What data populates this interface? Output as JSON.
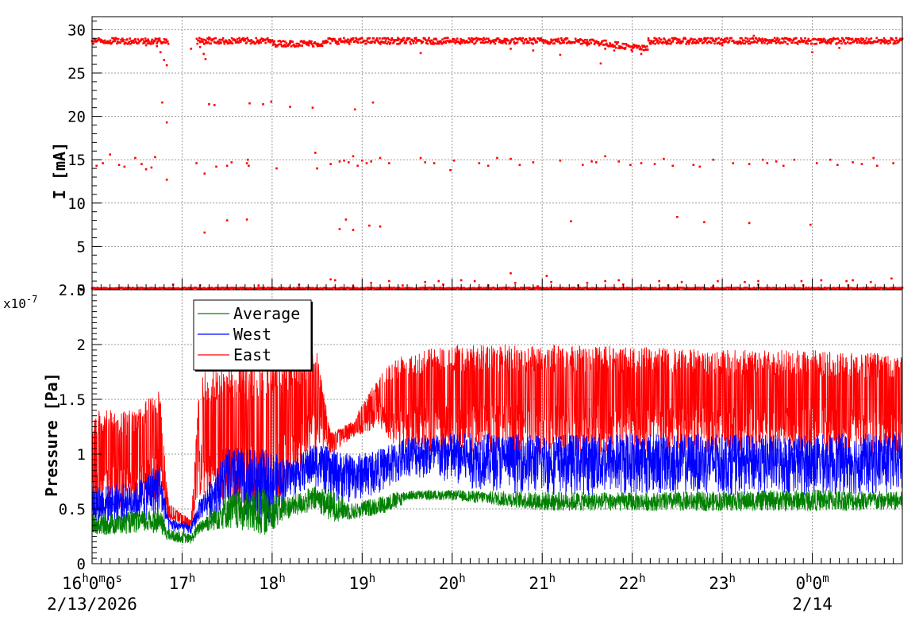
{
  "chart_data": [
    {
      "type": "scatter",
      "panel": "top",
      "ylabel": "I [mA]",
      "ylim": [
        0,
        31.5
      ],
      "y_ticks": [
        0,
        5,
        10,
        15,
        20,
        25,
        30
      ],
      "y_tick_labels": [
        "0",
        "5",
        "10",
        "15",
        "20",
        "25",
        "30"
      ],
      "grid": true,
      "series": [
        {
          "color": "#ff0000",
          "baseline_level": 28.7,
          "secondary_level": 14.6,
          "zero_level": 0.1,
          "gap_hours": [
            [
              16.85,
              17.16
            ]
          ],
          "dip_points": [
            [
              16.72,
              28.1
            ],
            [
              16.76,
              27.4
            ],
            [
              16.8,
              26.5
            ],
            [
              16.83,
              25.9
            ],
            [
              17.2,
              28.0
            ],
            [
              17.24,
              27.2
            ],
            [
              17.26,
              26.6
            ]
          ],
          "outliers": [
            [
              16.05,
              14.3
            ],
            [
              16.12,
              14.6
            ],
            [
              16.2,
              15.6
            ],
            [
              16.3,
              14.4
            ],
            [
              16.36,
              14.2
            ],
            [
              16.48,
              15.2
            ],
            [
              16.55,
              14.5
            ],
            [
              16.6,
              13.9
            ],
            [
              16.66,
              14.1
            ],
            [
              16.7,
              15.3
            ],
            [
              16.78,
              21.6
            ],
            [
              16.83,
              19.3
            ],
            [
              16.83,
              12.7
            ],
            [
              17.16,
              14.6
            ],
            [
              17.25,
              13.4
            ],
            [
              17.3,
              21.4
            ],
            [
              17.36,
              21.3
            ],
            [
              17.38,
              14.2
            ],
            [
              17.5,
              14.3
            ],
            [
              17.55,
              14.7
            ],
            [
              17.72,
              14.6
            ],
            [
              17.73,
              15.0
            ],
            [
              17.74,
              14.3
            ],
            [
              17.75,
              21.5
            ],
            [
              17.9,
              21.4
            ],
            [
              17.99,
              21.7
            ],
            [
              18.05,
              14.0
            ],
            [
              18.2,
              21.1
            ],
            [
              18.45,
              21.0
            ],
            [
              18.5,
              14.0
            ],
            [
              18.48,
              15.8
            ],
            [
              18.65,
              14.5
            ],
            [
              18.75,
              14.8
            ],
            [
              18.8,
              14.9
            ],
            [
              18.85,
              14.7
            ],
            [
              18.92,
              20.8
            ],
            [
              18.9,
              15.4
            ],
            [
              18.95,
              14.3
            ],
            [
              19.0,
              14.9
            ],
            [
              19.05,
              14.6
            ],
            [
              19.12,
              21.6
            ],
            [
              19.1,
              14.8
            ],
            [
              19.2,
              15.2
            ],
            [
              19.3,
              14.6
            ],
            [
              19.65,
              15.2
            ],
            [
              19.7,
              14.7
            ],
            [
              19.8,
              14.6
            ],
            [
              19.98,
              13.8
            ],
            [
              20.02,
              14.9
            ],
            [
              20.3,
              14.6
            ],
            [
              20.4,
              14.3
            ],
            [
              20.5,
              15.2
            ],
            [
              20.65,
              15.1
            ],
            [
              20.75,
              14.4
            ],
            [
              20.9,
              14.7
            ],
            [
              21.2,
              14.9
            ],
            [
              21.45,
              14.4
            ],
            [
              21.55,
              14.8
            ],
            [
              21.6,
              14.7
            ],
            [
              21.7,
              15.4
            ],
            [
              21.85,
              14.8
            ],
            [
              21.98,
              14.4
            ],
            [
              22.1,
              14.6
            ],
            [
              22.25,
              14.5
            ],
            [
              22.35,
              15.1
            ],
            [
              22.45,
              14.3
            ],
            [
              22.68,
              14.4
            ],
            [
              22.75,
              14.2
            ],
            [
              22.9,
              15.0
            ],
            [
              23.12,
              14.6
            ],
            [
              23.3,
              14.5
            ],
            [
              23.45,
              15.0
            ],
            [
              23.5,
              14.6
            ],
            [
              23.6,
              14.8
            ],
            [
              23.68,
              14.3
            ],
            [
              23.8,
              15.0
            ],
            [
              24.05,
              14.6
            ],
            [
              24.2,
              15.0
            ],
            [
              24.28,
              14.4
            ],
            [
              24.45,
              14.7
            ],
            [
              24.55,
              14.5
            ],
            [
              24.68,
              15.2
            ],
            [
              24.72,
              14.3
            ],
            [
              24.9,
              14.6
            ],
            [
              17.5,
              8.0
            ],
            [
              17.72,
              8.1
            ],
            [
              18.75,
              7.0
            ],
            [
              18.82,
              8.1
            ],
            [
              18.9,
              6.9
            ],
            [
              19.08,
              7.4
            ],
            [
              19.2,
              7.3
            ],
            [
              21.32,
              7.9
            ],
            [
              22.5,
              8.4
            ],
            [
              22.8,
              7.8
            ],
            [
              23.3,
              7.7
            ],
            [
              23.98,
              7.5
            ],
            [
              17.25,
              6.6
            ],
            [
              18.65,
              1.2
            ],
            [
              18.7,
              1.1
            ],
            [
              19.1,
              0.8
            ],
            [
              19.3,
              1.0
            ],
            [
              19.7,
              0.9
            ],
            [
              19.85,
              1.0
            ],
            [
              20.1,
              1.1
            ],
            [
              20.25,
              1.0
            ],
            [
              20.65,
              1.9
            ],
            [
              20.7,
              0.8
            ],
            [
              21.05,
              1.6
            ],
            [
              21.1,
              0.9
            ],
            [
              21.5,
              0.8
            ],
            [
              21.7,
              1.0
            ],
            [
              21.85,
              1.1
            ],
            [
              22.3,
              1.0
            ],
            [
              22.55,
              0.9
            ],
            [
              22.95,
              1.0
            ],
            [
              23.25,
              0.9
            ],
            [
              23.4,
              1.0
            ],
            [
              23.88,
              1.0
            ],
            [
              24.1,
              1.1
            ],
            [
              24.38,
              1.0
            ],
            [
              24.45,
              1.1
            ],
            [
              24.65,
              0.9
            ],
            [
              24.88,
              1.3
            ],
            [
              16.9,
              0.6
            ],
            [
              17.2,
              0.5
            ],
            [
              17.85,
              0.5
            ],
            [
              18.3,
              0.6
            ],
            [
              18.9,
              0.4
            ],
            [
              19.45,
              0.5
            ],
            [
              19.9,
              0.6
            ],
            [
              20.4,
              0.5
            ],
            [
              20.95,
              0.4
            ],
            [
              21.4,
              0.5
            ],
            [
              21.9,
              0.6
            ],
            [
              22.4,
              0.5
            ],
            [
              22.9,
              0.4
            ],
            [
              23.4,
              0.6
            ],
            [
              23.9,
              0.5
            ],
            [
              24.4,
              0.5
            ]
          ],
          "structured_points": [
            [
              18.0,
              28.8
            ],
            [
              18.1,
              28.6
            ],
            [
              18.2,
              28.4
            ],
            [
              18.4,
              28.3
            ],
            [
              18.6,
              28.5
            ],
            [
              19.4,
              28.8
            ],
            [
              19.6,
              28.5
            ],
            [
              19.8,
              28.9
            ],
            [
              20.1,
              28.7
            ],
            [
              20.6,
              28.4
            ],
            [
              21.1,
              28.6
            ],
            [
              21.5,
              28.2
            ],
            [
              21.7,
              27.8
            ],
            [
              21.8,
              27.6
            ],
            [
              22.0,
              27.5
            ],
            [
              22.1,
              27.2
            ],
            [
              22.18,
              29.0
            ],
            [
              22.5,
              28.8
            ],
            [
              22.8,
              28.9
            ],
            [
              23.0,
              28.2
            ],
            [
              23.2,
              28.6
            ],
            [
              23.6,
              28.8
            ],
            [
              23.9,
              28.7
            ],
            [
              24.2,
              28.9
            ],
            [
              24.5,
              28.5
            ],
            [
              24.8,
              28.7
            ],
            [
              16.6,
              28.2
            ],
            [
              17.1,
              27.8
            ],
            [
              17.3,
              29.1
            ],
            [
              17.7,
              28.8
            ],
            [
              19.25,
              29.0
            ],
            [
              20.9,
              27.6
            ],
            [
              21.2,
              27.1
            ],
            [
              21.65,
              26.1
            ],
            [
              23.35,
              29.3
            ],
            [
              24.0,
              27.4
            ],
            [
              24.3,
              27.9
            ],
            [
              20.65,
              27.8
            ],
            [
              19.65,
              27.3
            ]
          ]
        }
      ]
    },
    {
      "type": "line",
      "panel": "bottom",
      "ylabel": "Pressure [Pa]",
      "y_scale_label": "x10",
      "y_scale_exponent": "-7",
      "ylim": [
        0,
        2.5
      ],
      "y_ticks": [
        0,
        0.5,
        1,
        1.5,
        2,
        2.5
      ],
      "y_tick_labels": [
        "0",
        "0.5",
        "1",
        "1.5",
        "2",
        "2.5"
      ],
      "grid": true,
      "legend_position": "top-left",
      "series": [
        {
          "name": "Average",
          "color": "#008000",
          "envelope_hours": [
            16.0,
            16.5,
            16.75,
            16.85,
            17.1,
            17.2,
            17.5,
            17.9,
            18.2,
            18.5,
            18.65,
            18.9,
            19.2,
            19.4,
            19.5,
            20.0,
            21.0,
            22.0,
            23.0,
            24.0,
            25.0
          ],
          "envelope_low": [
            0.25,
            0.28,
            0.28,
            0.2,
            0.18,
            0.28,
            0.32,
            0.25,
            0.42,
            0.48,
            0.38,
            0.4,
            0.45,
            0.5,
            0.58,
            0.58,
            0.48,
            0.48,
            0.48,
            0.48,
            0.48
          ],
          "envelope_high": [
            0.45,
            0.48,
            0.5,
            0.32,
            0.27,
            0.4,
            0.65,
            0.68,
            0.62,
            0.72,
            0.68,
            0.55,
            0.62,
            0.66,
            0.67,
            0.67,
            0.66,
            0.65,
            0.66,
            0.68,
            0.66
          ]
        },
        {
          "name": "West",
          "color": "#0000ff",
          "envelope_hours": [
            16.0,
            16.5,
            16.75,
            16.85,
            17.1,
            17.2,
            17.5,
            17.9,
            18.2,
            18.5,
            18.65,
            18.9,
            19.2,
            19.4,
            19.5,
            20.0,
            21.0,
            22.0,
            23.0,
            24.0,
            25.0
          ],
          "envelope_low": [
            0.35,
            0.38,
            0.4,
            0.3,
            0.26,
            0.4,
            0.45,
            0.3,
            0.6,
            0.7,
            0.55,
            0.55,
            0.65,
            0.7,
            0.8,
            0.7,
            0.62,
            0.62,
            0.62,
            0.62,
            0.62
          ],
          "envelope_high": [
            0.7,
            0.75,
            0.95,
            0.42,
            0.36,
            0.6,
            1.05,
            1.05,
            0.95,
            1.12,
            1.05,
            1.0,
            1.05,
            1.12,
            1.18,
            1.2,
            1.18,
            1.2,
            1.18,
            1.18,
            1.2
          ]
        },
        {
          "name": "East",
          "color": "#ff0000",
          "envelope_hours": [
            16.0,
            16.5,
            16.75,
            16.85,
            17.1,
            17.2,
            17.5,
            17.9,
            18.2,
            18.5,
            18.65,
            18.9,
            19.2,
            19.4,
            19.5,
            20.0,
            21.0,
            22.0,
            23.0,
            24.0,
            25.0
          ],
          "envelope_low": [
            0.45,
            0.5,
            0.6,
            0.4,
            0.33,
            0.6,
            0.55,
            0.45,
            0.7,
            1.05,
            1.0,
            1.15,
            1.25,
            1.0,
            1.05,
            1.0,
            1.0,
            1.0,
            1.0,
            1.0,
            1.0
          ],
          "envelope_high": [
            1.4,
            1.4,
            1.62,
            0.55,
            0.4,
            1.75,
            1.8,
            1.85,
            1.88,
            1.95,
            1.2,
            1.3,
            1.75,
            1.9,
            1.95,
            2.0,
            2.0,
            1.98,
            1.95,
            1.95,
            1.92
          ]
        }
      ]
    }
  ],
  "x_axis": {
    "x_range_hours": [
      16.0,
      25.0
    ],
    "major_tick_hours": [
      16,
      17,
      18,
      19,
      20,
      21,
      22,
      23,
      24
    ],
    "tick_labels": [
      {
        "hour": 16,
        "main": "16",
        "parts": [
          [
            "h",
            "0"
          ],
          [
            "m",
            "0"
          ],
          [
            "s",
            ""
          ]
        ]
      },
      {
        "hour": 17,
        "main": "17",
        "parts": [
          [
            "h",
            ""
          ]
        ]
      },
      {
        "hour": 18,
        "main": "18",
        "parts": [
          [
            "h",
            ""
          ]
        ]
      },
      {
        "hour": 19,
        "main": "19",
        "parts": [
          [
            "h",
            ""
          ]
        ]
      },
      {
        "hour": 20,
        "main": "20",
        "parts": [
          [
            "h",
            ""
          ]
        ]
      },
      {
        "hour": 21,
        "main": "21",
        "parts": [
          [
            "h",
            ""
          ]
        ]
      },
      {
        "hour": 22,
        "main": "22",
        "parts": [
          [
            "h",
            ""
          ]
        ]
      },
      {
        "hour": 23,
        "main": "23",
        "parts": [
          [
            "h",
            ""
          ]
        ]
      },
      {
        "hour": 24,
        "main": "0",
        "parts": [
          [
            "h",
            "0"
          ],
          [
            "m",
            ""
          ]
        ]
      }
    ],
    "date_labels": [
      {
        "hour": 16,
        "text": "2/13/2026"
      },
      {
        "hour": 24,
        "text": "2/14"
      }
    ]
  },
  "legend": {
    "entries": [
      {
        "label": "Average",
        "color": "#008000"
      },
      {
        "label": "West",
        "color": "#0000ff"
      },
      {
        "label": "East",
        "color": "#ff0000"
      }
    ]
  }
}
